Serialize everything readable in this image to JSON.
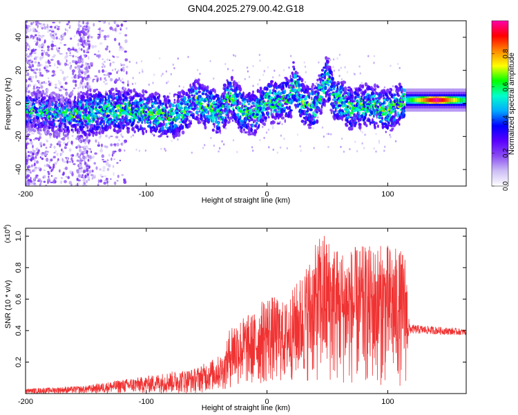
{
  "title": "GN04.2025.279.00.42.G18",
  "chart_data": [
    {
      "type": "heatmap",
      "xlabel": "Height of straight line (km)",
      "ylabel": "Frequency (Hz)",
      "xlim": [
        -200,
        165
      ],
      "ylim": [
        -50,
        50
      ],
      "xticks": [
        -200,
        -100,
        0,
        100
      ],
      "yticks": [
        -40,
        -20,
        0,
        20,
        40
      ],
      "colorbar": {
        "label": "Normalized spectral amplitude",
        "range": [
          0,
          1
        ],
        "ticks": [
          0.0,
          0.2,
          0.4,
          0.6,
          0.8
        ],
        "colors": [
          "#ffffff",
          "#cdbef5",
          "#8a4cf2",
          "#5a00ff",
          "#0000ff",
          "#00aaff",
          "#00ffcc",
          "#00ff00",
          "#ffff00",
          "#ff8800",
          "#ff0000",
          "#ff00aa"
        ]
      },
      "ridge": [
        {
          "x": -200,
          "y": -4
        },
        {
          "x": -180,
          "y": -6
        },
        {
          "x": -160,
          "y": -7
        },
        {
          "x": -150,
          "y": -7
        },
        {
          "x": -140,
          "y": -5
        },
        {
          "x": -120,
          "y": -4
        },
        {
          "x": -100,
          "y": -6
        },
        {
          "x": -80,
          "y": -8
        },
        {
          "x": -65,
          "y": -4
        },
        {
          "x": -60,
          "y": 3
        },
        {
          "x": -50,
          "y": -2
        },
        {
          "x": -40,
          "y": -6
        },
        {
          "x": -30,
          "y": 4
        },
        {
          "x": -20,
          "y": -5
        },
        {
          "x": -10,
          "y": -6
        },
        {
          "x": 0,
          "y": 2
        },
        {
          "x": 10,
          "y": 0
        },
        {
          "x": 20,
          "y": 5
        },
        {
          "x": 22,
          "y": 13
        },
        {
          "x": 30,
          "y": 0
        },
        {
          "x": 40,
          "y": -2
        },
        {
          "x": 50,
          "y": 16
        },
        {
          "x": 55,
          "y": 4
        },
        {
          "x": 70,
          "y": -3
        },
        {
          "x": 85,
          "y": -1
        },
        {
          "x": 100,
          "y": -5
        },
        {
          "x": 110,
          "y": 0
        },
        {
          "x": 115,
          "y": 2
        },
        {
          "x": 165,
          "y": 2
        }
      ],
      "tone_segment": {
        "x": [
          115,
          165
        ],
        "y": 2,
        "peak_x": 140,
        "peak_amplitude": 1.0
      }
    },
    {
      "type": "line",
      "xlabel": "Height of straight line (km)",
      "ylabel": "SNR (10 * v/v)",
      "yscale_label": "(x10",
      "yscale_exp": "4",
      "xlim": [
        -200,
        165
      ],
      "ylim": [
        0,
        1.05
      ],
      "xticks": [
        -200,
        -100,
        0,
        100
      ],
      "yticks": [
        0.2,
        0.4,
        0.6,
        0.8,
        1.0
      ],
      "color": "#f03232",
      "envelope": [
        {
          "x": -200,
          "lo": 0.0,
          "hi": 0.03
        },
        {
          "x": -150,
          "lo": 0.0,
          "hi": 0.05
        },
        {
          "x": -120,
          "lo": 0.0,
          "hi": 0.09
        },
        {
          "x": -100,
          "lo": 0.0,
          "hi": 0.11
        },
        {
          "x": -80,
          "lo": 0.0,
          "hi": 0.14
        },
        {
          "x": -60,
          "lo": 0.0,
          "hi": 0.16
        },
        {
          "x": -35,
          "lo": 0.02,
          "hi": 0.26
        },
        {
          "x": -30,
          "lo": 0.03,
          "hi": 0.46
        },
        {
          "x": -10,
          "lo": 0.04,
          "hi": 0.52
        },
        {
          "x": 0,
          "lo": 0.05,
          "hi": 0.64
        },
        {
          "x": 15,
          "lo": 0.06,
          "hi": 0.58
        },
        {
          "x": 30,
          "lo": 0.08,
          "hi": 0.78
        },
        {
          "x": 46,
          "lo": 0.05,
          "hi": 1.04
        },
        {
          "x": 60,
          "lo": 0.05,
          "hi": 0.92
        },
        {
          "x": 80,
          "lo": 0.04,
          "hi": 0.94
        },
        {
          "x": 100,
          "lo": 0.05,
          "hi": 0.95
        },
        {
          "x": 115,
          "lo": 0.04,
          "hi": 0.9
        },
        {
          "x": 118,
          "lo": 0.38,
          "hi": 0.44
        },
        {
          "x": 165,
          "lo": 0.37,
          "hi": 0.41
        }
      ]
    }
  ]
}
